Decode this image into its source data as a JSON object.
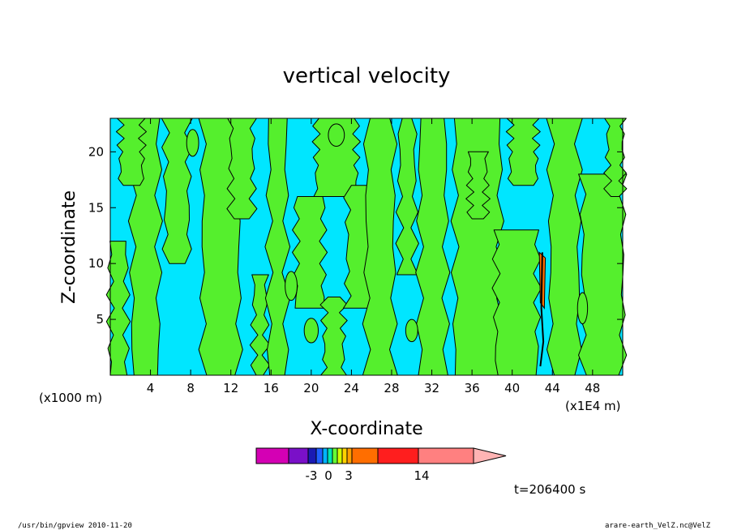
{
  "chart_data": {
    "type": "heatmap",
    "title": "vertical velocity",
    "xlabel": "X-coordinate",
    "ylabel": "Z-coordinate",
    "x_unit_left": "(x1000 m)",
    "x_unit_right": "(x1E4 m)",
    "xlim": [
      0,
      51
    ],
    "ylim": [
      0,
      23
    ],
    "xticks": [
      4,
      8,
      12,
      16,
      20,
      24,
      28,
      32,
      36,
      40,
      44,
      48
    ],
    "yticks": [
      5,
      10,
      15,
      20
    ],
    "colorbar": {
      "colors": [
        "#d400b4",
        "#7a10c8",
        "#1a1ab4",
        "#1f5fff",
        "#00b4ff",
        "#00e6b4",
        "#66ff33",
        "#d2ff00",
        "#ffd200",
        "#ffa000",
        "#ff6e00",
        "#ff1e1e",
        "#ff8080",
        "#ffb4b4"
      ],
      "tick_labels": [
        "-3",
        "0",
        "3",
        "14"
      ],
      "extend": "max"
    },
    "dominant_colors": {
      "positive_weak": "#55ef2d",
      "negative_weak": "#00e6ff",
      "strong": "#ff6e00"
    },
    "time_label": "t=206400 s"
  },
  "footer": {
    "left": "/usr/bin/gpview   2010-11-20",
    "right": "arare-earth_VelZ.nc@VelZ"
  }
}
